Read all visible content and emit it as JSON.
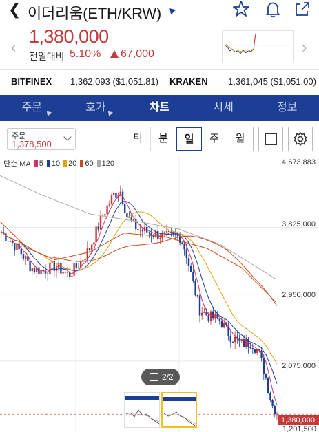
{
  "header": {
    "title": "이더리움(ETH/KRW)"
  },
  "price": {
    "current": "1,380,000",
    "change_label": "전일대비",
    "change_pct": "5.10%",
    "change_amount": "67,000"
  },
  "exchanges": [
    {
      "name": "BITFINEX",
      "value": "1,362,093 ($1,051.81)"
    },
    {
      "name": "KRAKEN",
      "value": "1,361,045 ($1,051.00)"
    }
  ],
  "tabs": [
    "주문",
    "호가",
    "차트",
    "시세",
    "정보"
  ],
  "active_tab": "차트",
  "order": {
    "label": "주문",
    "value": "1,378,500"
  },
  "periods": [
    "틱",
    "분",
    "일",
    "주",
    "월"
  ],
  "active_period": "일",
  "chart": {
    "legend_prefix": "단순 MA",
    "ma": [
      {
        "period": "5",
        "color": "#cc3366"
      },
      {
        "period": "10",
        "color": "#1c3f95"
      },
      {
        "period": "20",
        "color": "#e0a21b"
      },
      {
        "period": "60",
        "color": "#c84b1e"
      },
      {
        "period": "120",
        "color": "#aaaaaa"
      }
    ],
    "y_labels": [
      "4,673,883",
      "3,825,000",
      "2,950,000",
      "2,075,000"
    ],
    "current_price_tag": "1,380,000",
    "low_label": "1,201,500",
    "page_indicator": "2/2"
  },
  "colors": {
    "up": "#c23a3a",
    "down": "#1c3f95",
    "brand": "#1c3f95"
  }
}
